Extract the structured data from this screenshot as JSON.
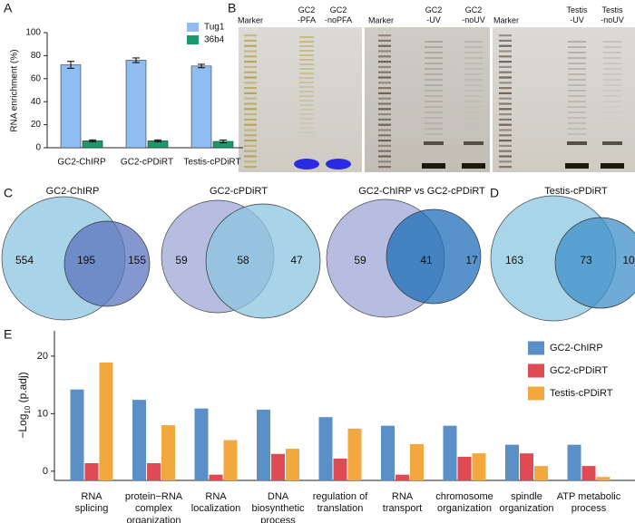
{
  "panel_labels": [
    "A",
    "B",
    "C",
    "D",
    "E"
  ],
  "gels": [
    {
      "lanes": [
        "Marker",
        "GC2\n-PFA",
        "GC2\n-noPFA"
      ]
    },
    {
      "lanes": [
        "Marker",
        "GC2\n-UV",
        "GC2\n-noUV"
      ]
    },
    {
      "lanes": [
        "Marker",
        "Testis\n-UV",
        "Testis\n-noUV"
      ]
    }
  ],
  "chart_data": [
    {
      "type": "bar",
      "ylabel": "RNA enrichment (%)",
      "categories": [
        "GC2-ChIRP",
        "GC2-cPDiRT",
        "Testis-cPDiRT"
      ],
      "series": [
        {
          "name": "Tug1",
          "color": "#8fbdf2",
          "values": [
            72,
            76,
            71
          ],
          "errors": [
            3,
            2,
            1.5
          ]
        },
        {
          "name": "36b4",
          "color": "#1a9a6c",
          "values": [
            6,
            6,
            5.5
          ],
          "errors": [
            0.8,
            0.8,
            1.2
          ]
        }
      ],
      "ylim": [
        0,
        100
      ],
      "yticks": [
        0,
        20,
        40,
        60,
        80,
        100
      ]
    },
    {
      "type": "venn",
      "title": "GC2-ChIRP",
      "values": [
        554,
        195,
        155
      ],
      "colors": [
        "#a9d3e8",
        "#5b74bd"
      ]
    },
    {
      "type": "venn",
      "title": "GC2-cPDiRT",
      "values": [
        59,
        58,
        47
      ],
      "colors": [
        "#b6bde0",
        "#8cc6e0"
      ]
    },
    {
      "type": "venn",
      "title": "GC2-ChIRP vs GC2-cPDiRT",
      "values": [
        59,
        41,
        17
      ],
      "colors": [
        "#b6bde0",
        "#1f6fb8"
      ]
    },
    {
      "type": "venn",
      "title": "Testis-cPDiRT",
      "values": [
        163,
        73,
        10
      ],
      "colors": [
        "#a9d5e8",
        "#3f8fc9"
      ]
    },
    {
      "type": "bar",
      "ylabel": [
        "−Log",
        "10",
        " (p.adj)"
      ],
      "categories": [
        "RNA\nsplicing",
        "protein−RNA\ncomplex\norganization",
        "RNA\nlocalization",
        "DNA\nbiosynthetic\nprocess",
        "regulation of\ntranslation",
        "RNA\ntransport",
        "chromosome\norganization",
        "spindle\norganization",
        "ATP metabolic\nprocess"
      ],
      "series": [
        {
          "name": "GC2-ChIRP",
          "color": "#5b8fc7",
          "values": [
            14.2,
            12.4,
            10.9,
            10.7,
            9.4,
            7.9,
            7.9,
            4.6,
            4.6
          ]
        },
        {
          "name": "GC2-cPDiRT",
          "color": "#e04a55",
          "values": [
            1.4,
            1.4,
            -0.6,
            3.0,
            2.2,
            -0.6,
            2.5,
            3.1,
            0.9
          ]
        },
        {
          "name": "Testis-cPDiRT",
          "color": "#f3a73f",
          "values": [
            18.9,
            8.0,
            5.4,
            3.9,
            7.4,
            4.7,
            3.1,
            0.9,
            -1.0
          ]
        }
      ],
      "ylim": [
        -1.6,
        24.4
      ],
      "yticks": [
        0,
        10,
        20
      ]
    }
  ]
}
